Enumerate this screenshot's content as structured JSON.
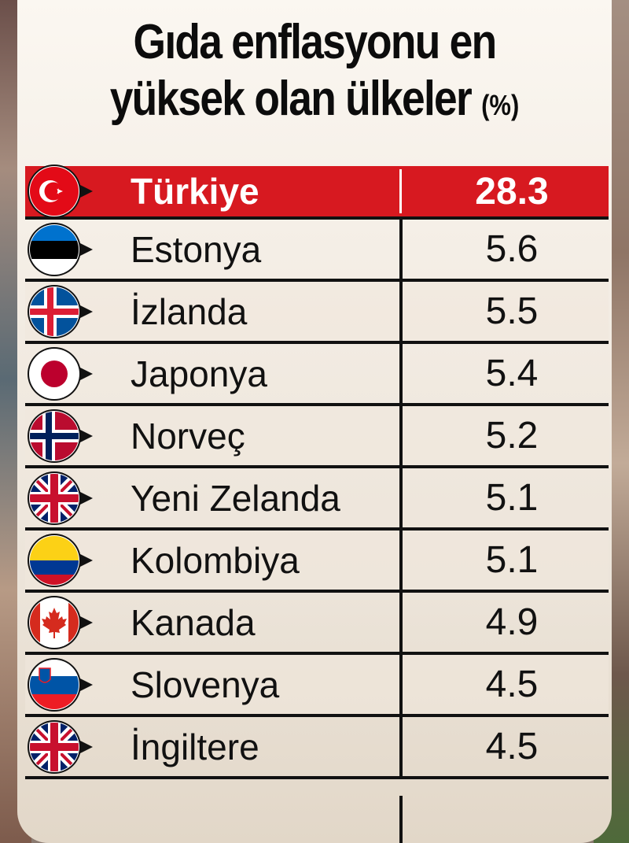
{
  "title_line1": "Gıda enflasyonu en",
  "title_line2": "yüksek olan ülkeler",
  "title_unit": "(%)",
  "chart_data": {
    "type": "table",
    "title": "Gıda enflasyonu en yüksek olan ülkeler (%)",
    "categories": [
      "Türkiye",
      "Estonya",
      "İzlanda",
      "Japonya",
      "Norveç",
      "Yeni Zelanda",
      "Kolombiya",
      "Kanada",
      "Slovenya",
      "İngiltere"
    ],
    "values": [
      28.3,
      5.6,
      5.5,
      5.4,
      5.2,
      5.1,
      5.1,
      4.9,
      4.5,
      4.5
    ]
  },
  "rows": [
    {
      "name": "Türkiye",
      "value": "28.3",
      "flag": "turkey-flag-icon",
      "highlight": true
    },
    {
      "name": "Estonya",
      "value": "5.6",
      "flag": "estonia-flag-icon"
    },
    {
      "name": "İzlanda",
      "value": "5.5",
      "flag": "iceland-flag-icon"
    },
    {
      "name": "Japonya",
      "value": "5.4",
      "flag": "japan-flag-icon"
    },
    {
      "name": "Norveç",
      "value": "5.2",
      "flag": "norway-flag-icon"
    },
    {
      "name": "Yeni Zelanda",
      "value": "5.1",
      "flag": "new-zealand-flag-icon"
    },
    {
      "name": "Kolombiya",
      "value": "5.1",
      "flag": "colombia-flag-icon"
    },
    {
      "name": "Kanada",
      "value": "4.9",
      "flag": "canada-flag-icon"
    },
    {
      "name": "Slovenya",
      "value": "4.5",
      "flag": "slovenia-flag-icon"
    },
    {
      "name": "İngiltere",
      "value": "4.5",
      "flag": "uk-flag-icon"
    }
  ],
  "colors": {
    "highlight": "#d71920",
    "text": "#111111"
  }
}
